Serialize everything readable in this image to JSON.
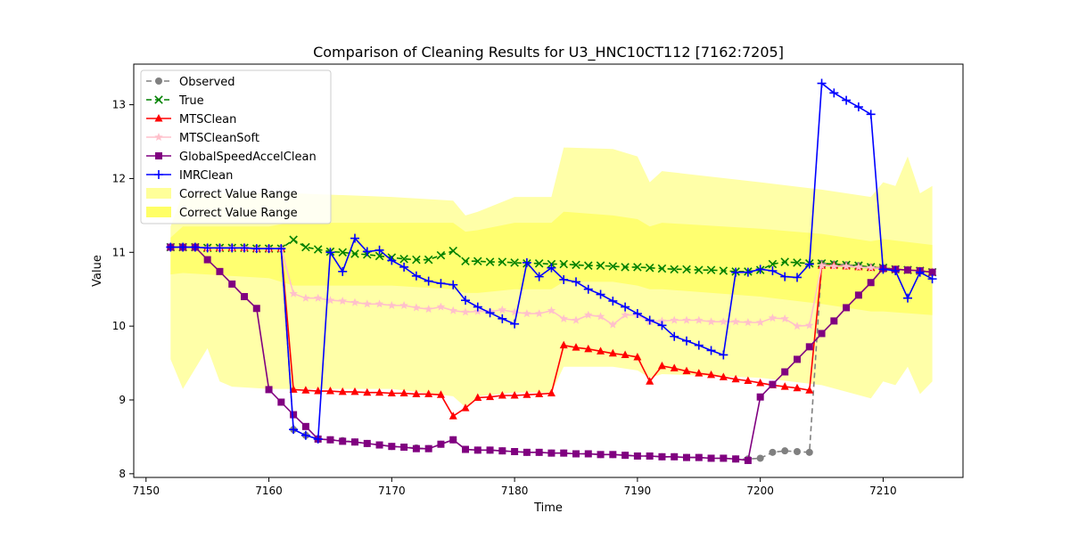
{
  "chart_data": {
    "type": "line",
    "title": "Comparison of Cleaning Results for U3_HNC10CT112 [7162:7205]",
    "xlabel": "Time",
    "ylabel": "Value",
    "xlim": [
      7149,
      7216.5
    ],
    "ylim": [
      7.95,
      13.55
    ],
    "xticks": [
      7150,
      7160,
      7170,
      7180,
      7190,
      7200,
      7210
    ],
    "yticks": [
      8,
      9,
      10,
      11,
      12,
      13
    ],
    "grid": false,
    "legend_position": "top-left",
    "band_outer": {
      "name": "Correct Value Range",
      "color": "#ffff99",
      "x": [
        7152,
        7153,
        7155,
        7156,
        7157,
        7160,
        7161,
        7162,
        7170,
        7175,
        7176,
        7177,
        7180,
        7183,
        7184,
        7188,
        7190,
        7191,
        7192,
        7200,
        7205,
        7209,
        7210,
        7211,
        7212,
        7213,
        7214
      ],
      "upper": [
        11.35,
        11.8,
        11.8,
        11.8,
        11.8,
        11.8,
        11.8,
        11.8,
        11.75,
        11.7,
        11.5,
        11.55,
        11.75,
        11.75,
        12.42,
        12.4,
        12.3,
        11.95,
        12.1,
        11.95,
        11.85,
        11.75,
        11.95,
        11.9,
        12.3,
        11.8,
        11.9
      ],
      "lower": [
        9.55,
        9.15,
        9.7,
        9.25,
        9.18,
        9.15,
        9.15,
        9.15,
        9.15,
        9.05,
        8.9,
        9.05,
        9.1,
        9.1,
        9.45,
        9.45,
        9.4,
        9.3,
        9.35,
        9.3,
        9.2,
        9.02,
        9.25,
        9.2,
        9.45,
        9.08,
        9.25
      ]
    },
    "band_inner": {
      "name": "Correct Value Range",
      "color": "#ffff66",
      "x": [
        7152,
        7153,
        7160,
        7161,
        7162,
        7170,
        7175,
        7176,
        7177,
        7180,
        7183,
        7184,
        7188,
        7190,
        7191,
        7192,
        7200,
        7205,
        7209,
        7210,
        7214
      ],
      "upper": [
        11.2,
        11.35,
        11.35,
        11.38,
        11.4,
        11.4,
        11.4,
        11.28,
        11.3,
        11.4,
        11.4,
        11.55,
        11.5,
        11.45,
        11.35,
        11.4,
        11.32,
        11.25,
        11.15,
        11.18,
        11.1
      ],
      "lower": [
        10.7,
        10.72,
        10.65,
        10.6,
        10.55,
        10.55,
        10.5,
        10.45,
        10.45,
        10.5,
        10.5,
        10.6,
        10.6,
        10.55,
        10.5,
        10.5,
        10.4,
        10.3,
        10.2,
        10.2,
        10.15
      ]
    },
    "series": [
      {
        "name": "Observed",
        "color": "#808080",
        "marker": "circle",
        "dash": "6,4",
        "x": [
          7152,
          7153,
          7154,
          7155,
          7156,
          7157,
          7158,
          7159,
          7160,
          7161,
          7162,
          7163,
          7164,
          7165,
          7166,
          7167,
          7168,
          7169,
          7170,
          7171,
          7172,
          7173,
          7174,
          7175,
          7176,
          7177,
          7178,
          7179,
          7180,
          7181,
          7182,
          7183,
          7184,
          7185,
          7186,
          7187,
          7188,
          7189,
          7190,
          7191,
          7192,
          7193,
          7194,
          7195,
          7196,
          7197,
          7198,
          7199,
          7200,
          7201,
          7202,
          7203,
          7204,
          7205,
          7206,
          7207,
          7208,
          7209,
          7210,
          7211,
          7212,
          7213,
          7214
        ],
        "y": [
          11.07,
          11.07,
          11.07,
          11.06,
          11.06,
          11.06,
          11.06,
          11.05,
          11.05,
          11.05,
          8.6,
          8.52,
          8.47,
          8.46,
          8.45,
          8.43,
          8.41,
          8.39,
          8.37,
          8.36,
          8.35,
          8.34,
          8.4,
          8.46,
          8.33,
          8.32,
          8.32,
          8.31,
          8.3,
          8.29,
          8.29,
          8.28,
          8.28,
          8.27,
          8.27,
          8.26,
          8.26,
          8.25,
          8.24,
          8.24,
          8.23,
          8.23,
          8.22,
          8.22,
          8.21,
          8.21,
          8.2,
          8.2,
          8.21,
          8.29,
          8.31,
          8.3,
          8.29,
          10.85,
          10.84,
          10.83,
          10.82,
          10.8,
          10.79,
          10.77,
          10.76,
          10.75,
          10.73
        ]
      },
      {
        "name": "True",
        "color": "#008000",
        "marker": "x",
        "dash": "6,4",
        "x": [
          7152,
          7153,
          7154,
          7155,
          7156,
          7157,
          7158,
          7159,
          7160,
          7161,
          7162,
          7163,
          7164,
          7165,
          7166,
          7167,
          7168,
          7169,
          7170,
          7171,
          7172,
          7173,
          7174,
          7175,
          7176,
          7177,
          7178,
          7179,
          7180,
          7181,
          7182,
          7183,
          7184,
          7185,
          7186,
          7187,
          7188,
          7189,
          7190,
          7191,
          7192,
          7193,
          7194,
          7195,
          7196,
          7197,
          7198,
          7199,
          7200,
          7201,
          7202,
          7203,
          7204,
          7205,
          7206,
          7207,
          7208,
          7209,
          7210,
          7211,
          7212,
          7213,
          7214
        ],
        "y": [
          11.07,
          11.07,
          11.07,
          11.06,
          11.06,
          11.06,
          11.06,
          11.05,
          11.05,
          11.05,
          11.17,
          11.07,
          11.04,
          11.01,
          11.0,
          10.98,
          10.97,
          10.95,
          10.93,
          10.91,
          10.9,
          10.9,
          10.96,
          11.02,
          10.88,
          10.88,
          10.87,
          10.87,
          10.86,
          10.85,
          10.85,
          10.84,
          10.84,
          10.83,
          10.82,
          10.82,
          10.81,
          10.8,
          10.8,
          10.79,
          10.78,
          10.77,
          10.77,
          10.76,
          10.76,
          10.75,
          10.74,
          10.74,
          10.76,
          10.84,
          10.87,
          10.86,
          10.85,
          10.85,
          10.84,
          10.83,
          10.82,
          10.8,
          10.79,
          10.77,
          10.76,
          10.75,
          10.73
        ]
      },
      {
        "name": "MTSClean",
        "color": "#ff0000",
        "marker": "triangle",
        "dash": "",
        "x": [
          7152,
          7153,
          7154,
          7155,
          7156,
          7157,
          7158,
          7159,
          7160,
          7161,
          7162,
          7163,
          7164,
          7165,
          7166,
          7167,
          7168,
          7169,
          7170,
          7171,
          7172,
          7173,
          7174,
          7175,
          7176,
          7177,
          7178,
          7179,
          7180,
          7181,
          7182,
          7183,
          7184,
          7185,
          7186,
          7187,
          7188,
          7189,
          7190,
          7191,
          7192,
          7193,
          7194,
          7195,
          7196,
          7197,
          7198,
          7199,
          7200,
          7201,
          7202,
          7203,
          7204,
          7205,
          7206,
          7207,
          7208,
          7209,
          7210,
          7211,
          7212,
          7213,
          7214
        ],
        "y": [
          11.07,
          11.07,
          11.07,
          11.06,
          11.06,
          11.06,
          11.06,
          11.05,
          11.05,
          11.05,
          9.14,
          9.13,
          9.12,
          9.12,
          9.11,
          9.11,
          9.1,
          9.1,
          9.09,
          9.09,
          9.08,
          9.08,
          9.07,
          8.78,
          8.89,
          9.03,
          9.04,
          9.06,
          9.06,
          9.07,
          9.08,
          9.09,
          9.74,
          9.71,
          9.69,
          9.66,
          9.63,
          9.61,
          9.58,
          9.25,
          9.46,
          9.43,
          9.39,
          9.36,
          9.34,
          9.31,
          9.28,
          9.26,
          9.23,
          9.2,
          9.18,
          9.16,
          9.13,
          10.82,
          10.82,
          10.81,
          10.8,
          10.79,
          10.78,
          10.77,
          10.76,
          10.75,
          10.73
        ]
      },
      {
        "name": "MTSCleanSoft",
        "color": "#ffc0cb",
        "marker": "star",
        "dash": "",
        "x": [
          7152,
          7153,
          7154,
          7155,
          7156,
          7157,
          7158,
          7159,
          7160,
          7161,
          7162,
          7163,
          7164,
          7165,
          7166,
          7167,
          7168,
          7169,
          7170,
          7171,
          7172,
          7173,
          7174,
          7175,
          7176,
          7177,
          7178,
          7179,
          7180,
          7181,
          7182,
          7183,
          7184,
          7185,
          7186,
          7187,
          7188,
          7189,
          7190,
          7191,
          7192,
          7193,
          7194,
          7195,
          7196,
          7197,
          7198,
          7199,
          7200,
          7201,
          7202,
          7203,
          7204,
          7205,
          7206,
          7207,
          7208,
          7209,
          7210,
          7211,
          7212,
          7213,
          7214
        ],
        "y": [
          11.07,
          11.07,
          11.07,
          11.06,
          11.06,
          11.06,
          11.06,
          11.05,
          11.05,
          11.05,
          10.44,
          10.38,
          10.38,
          10.35,
          10.34,
          10.32,
          10.3,
          10.3,
          10.28,
          10.28,
          10.25,
          10.23,
          10.26,
          10.21,
          10.19,
          10.2,
          10.2,
          10.22,
          10.19,
          10.17,
          10.17,
          10.21,
          10.1,
          10.08,
          10.15,
          10.13,
          10.02,
          10.15,
          10.15,
          10.06,
          10.07,
          10.08,
          10.08,
          10.08,
          10.06,
          10.06,
          10.06,
          10.05,
          10.05,
          10.11,
          10.1,
          10.0,
          10.01,
          10.82,
          10.81,
          10.81,
          10.8,
          10.79,
          10.78,
          10.77,
          10.76,
          10.75,
          10.73
        ]
      },
      {
        "name": "GlobalSpeedAccelClean",
        "color": "#800080",
        "marker": "square",
        "dash": "",
        "x": [
          7152,
          7153,
          7154,
          7155,
          7156,
          7157,
          7158,
          7159,
          7160,
          7161,
          7162,
          7163,
          7164,
          7165,
          7166,
          7167,
          7168,
          7169,
          7170,
          7171,
          7172,
          7173,
          7174,
          7175,
          7176,
          7177,
          7178,
          7179,
          7180,
          7181,
          7182,
          7183,
          7184,
          7185,
          7186,
          7187,
          7188,
          7189,
          7190,
          7191,
          7192,
          7193,
          7194,
          7195,
          7196,
          7197,
          7198,
          7199,
          7200,
          7201,
          7202,
          7203,
          7204,
          7205,
          7206,
          7207,
          7208,
          7209,
          7210,
          7211,
          7212,
          7213,
          7214
        ],
        "y": [
          11.07,
          11.07,
          11.07,
          10.9,
          10.74,
          10.57,
          10.4,
          10.24,
          9.14,
          8.97,
          8.8,
          8.64,
          8.47,
          8.46,
          8.44,
          8.43,
          8.41,
          8.39,
          8.37,
          8.36,
          8.34,
          8.34,
          8.4,
          8.46,
          8.33,
          8.32,
          8.32,
          8.31,
          8.3,
          8.29,
          8.29,
          8.28,
          8.28,
          8.27,
          8.27,
          8.26,
          8.26,
          8.25,
          8.24,
          8.24,
          8.23,
          8.23,
          8.22,
          8.22,
          8.21,
          8.21,
          8.2,
          8.18,
          9.04,
          9.21,
          9.38,
          9.55,
          9.72,
          9.9,
          10.07,
          10.25,
          10.42,
          10.59,
          10.78,
          10.77,
          10.76,
          10.75,
          10.73
        ]
      },
      {
        "name": "IMRClean",
        "color": "#0000ff",
        "marker": "plus",
        "dash": "",
        "x": [
          7152,
          7153,
          7154,
          7155,
          7156,
          7157,
          7158,
          7159,
          7160,
          7161,
          7162,
          7163,
          7164,
          7165,
          7166,
          7167,
          7168,
          7169,
          7170,
          7171,
          7172,
          7173,
          7174,
          7175,
          7176,
          7177,
          7178,
          7179,
          7180,
          7181,
          7182,
          7183,
          7184,
          7185,
          7186,
          7187,
          7188,
          7189,
          7190,
          7191,
          7192,
          7193,
          7194,
          7195,
          7196,
          7197,
          7198,
          7199,
          7200,
          7201,
          7202,
          7203,
          7204,
          7205,
          7206,
          7207,
          7208,
          7209,
          7210,
          7211,
          7212,
          7213,
          7214
        ],
        "y": [
          11.07,
          11.07,
          11.07,
          11.06,
          11.06,
          11.06,
          11.06,
          11.05,
          11.05,
          11.05,
          8.6,
          8.52,
          8.47,
          11.0,
          10.74,
          11.19,
          11.01,
          11.03,
          10.89,
          10.8,
          10.68,
          10.61,
          10.58,
          10.56,
          10.35,
          10.26,
          10.18,
          10.1,
          10.03,
          10.86,
          10.67,
          10.79,
          10.63,
          10.6,
          10.5,
          10.43,
          10.34,
          10.26,
          10.17,
          10.08,
          10.01,
          9.86,
          9.8,
          9.74,
          9.67,
          9.61,
          10.73,
          10.73,
          10.77,
          10.75,
          10.67,
          10.66,
          10.84,
          13.29,
          13.16,
          13.06,
          12.97,
          12.87,
          10.77,
          10.75,
          10.38,
          10.73,
          10.64
        ]
      }
    ],
    "legend": [
      "Observed",
      "True",
      "MTSClean",
      "MTSCleanSoft",
      "GlobalSpeedAccelClean",
      "IMRClean",
      "Correct Value Range",
      "Correct Value Range"
    ]
  }
}
